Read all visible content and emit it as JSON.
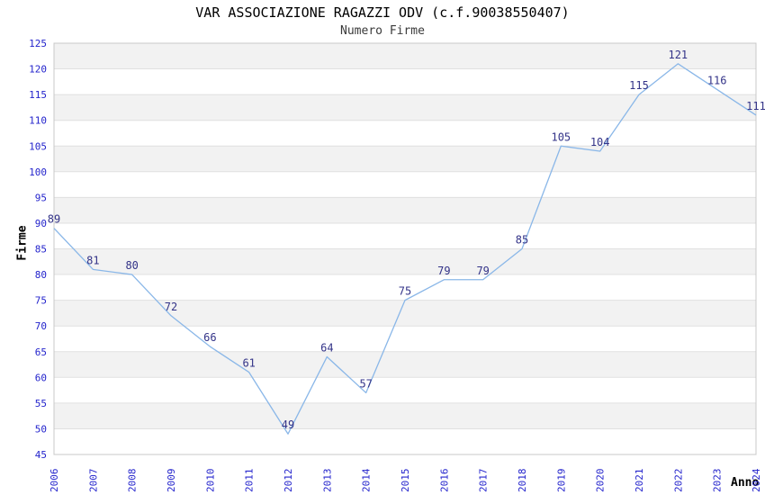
{
  "chart_data": {
    "type": "line",
    "title": "VAR ASSOCIAZIONE RAGAZZI ODV (c.f.90038550407)",
    "subtitle": "Numero Firme",
    "xlabel": "Anno",
    "ylabel": "Firme",
    "categories": [
      "2006",
      "2007",
      "2008",
      "2009",
      "2010",
      "2011",
      "2012",
      "2013",
      "2014",
      "2015",
      "2016",
      "2017",
      "2018",
      "2019",
      "2020",
      "2021",
      "2022",
      "2023",
      "2024"
    ],
    "values": [
      89,
      81,
      80,
      72,
      66,
      61,
      49,
      64,
      57,
      75,
      79,
      79,
      85,
      105,
      104,
      115,
      121,
      116,
      111
    ],
    "ylim": [
      45,
      125
    ],
    "ytick_step": 5,
    "grid": true,
    "legend_position": "none",
    "data_labels_shown": true,
    "style": {
      "line_color": "#8ab7e8",
      "data_label_color": "#333388",
      "tick_label_color": "#2424cc",
      "band_color_gray": "#f2f2f2",
      "band_color_white": "#ffffff",
      "grid_color": "#e0e0e0",
      "border_color": "#c8c8c8",
      "title_color": "#000000",
      "subtitle_color": "#3a3a3a"
    }
  }
}
